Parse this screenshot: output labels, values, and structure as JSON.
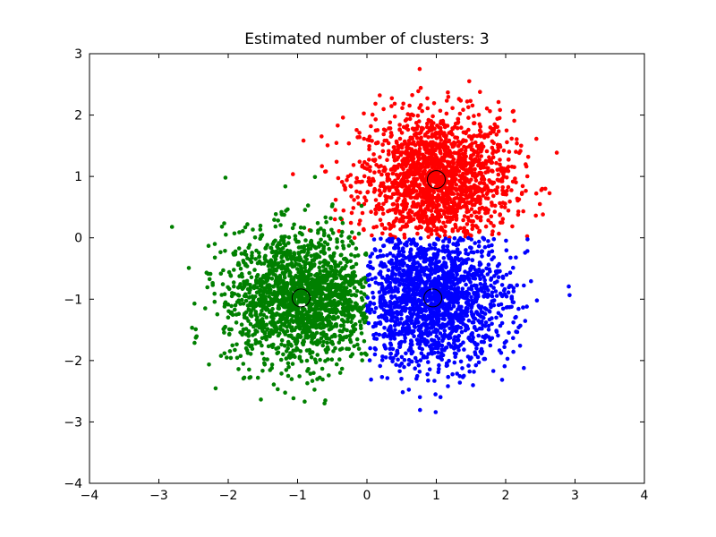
{
  "chart_data": {
    "type": "scatter",
    "title": "Estimated number of clusters: 3",
    "xlabel": "",
    "ylabel": "",
    "xlim": [
      -4,
      4
    ],
    "ylim": [
      -4,
      3
    ],
    "xticks": [
      -4,
      -3,
      -2,
      -1,
      0,
      1,
      2,
      3,
      4
    ],
    "yticks": [
      -4,
      -3,
      -2,
      -1,
      0,
      1,
      2,
      3
    ],
    "xtick_labels": [
      "−4",
      "−3",
      "−2",
      "−1",
      "0",
      "1",
      "2",
      "3",
      "4"
    ],
    "ytick_labels": [
      "−4",
      "−3",
      "−2",
      "−1",
      "0",
      "1",
      "2",
      "3"
    ],
    "grid": false,
    "series": [
      {
        "color": "#ff0000",
        "center": [
          1.0,
          0.95
        ],
        "spread": 0.55,
        "approx_points": 1700,
        "region": "y>0"
      },
      {
        "color": "#008000",
        "center": [
          -0.95,
          -0.98
        ],
        "spread": 0.55,
        "approx_points": 1700,
        "region": "x<0"
      },
      {
        "color": "#0000ff",
        "center": [
          0.95,
          -0.98
        ],
        "spread": 0.55,
        "approx_points": 1700,
        "region": "x>0,y<0"
      }
    ],
    "cluster_centers": [
      [
        1.0,
        0.95
      ],
      [
        -0.95,
        -0.98
      ],
      [
        0.95,
        -0.98
      ]
    ]
  }
}
